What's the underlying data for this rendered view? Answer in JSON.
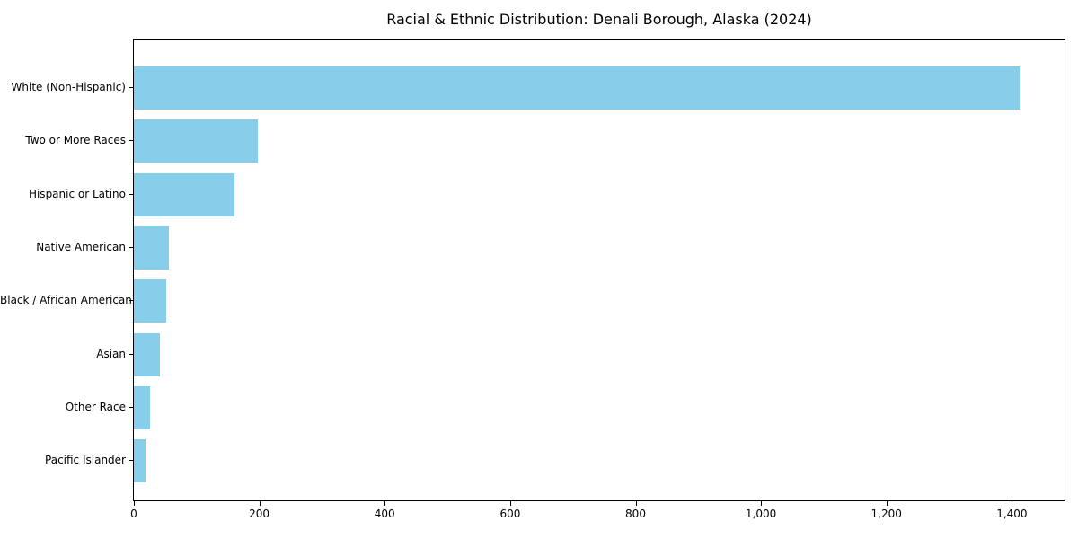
{
  "chart_data": {
    "type": "bar",
    "orientation": "horizontal",
    "title": "Racial & Ethnic Distribution: Denali Borough, Alaska (2024)",
    "categories": [
      "White (Non-Hispanic)",
      "Two or More Races",
      "Hispanic or Latino",
      "Native American",
      "Black / African American",
      "Asian",
      "Other Race",
      "Pacific Islander"
    ],
    "values": [
      1413,
      198,
      160,
      56,
      52,
      42,
      26,
      19
    ],
    "xlabel": "",
    "ylabel": "",
    "xlim": [
      0,
      1484
    ],
    "xticks": [
      0,
      200,
      400,
      600,
      800,
      1000,
      1200,
      1400
    ],
    "xtick_labels": [
      "0",
      "200",
      "400",
      "600",
      "800",
      "1,000",
      "1,200",
      "1,400"
    ],
    "grid": false,
    "legend": null,
    "colors": {
      "bar_fill": "#87CEEB",
      "background": "#ffffff",
      "spine": "#000000",
      "text": "#000000"
    }
  }
}
